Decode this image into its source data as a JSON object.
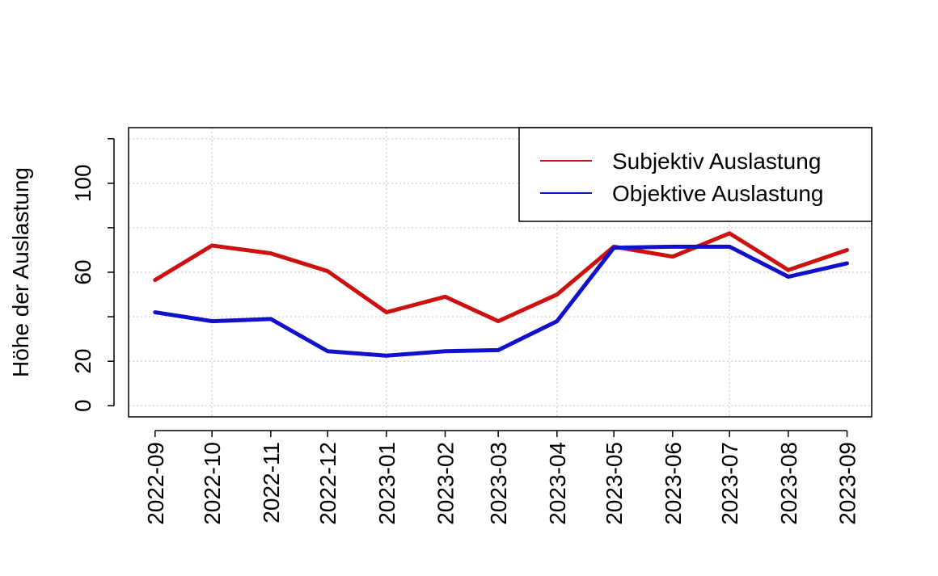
{
  "chart_data": {
    "type": "line",
    "title": "",
    "xlabel": "",
    "ylabel": "Höhe der Auslastung",
    "x": [
      "2022-09",
      "2022-10",
      "2022-11",
      "2022-12",
      "2023-01",
      "2023-02",
      "2023-03",
      "2023-04",
      "2023-05",
      "2023-06",
      "2023-07",
      "2023-08",
      "2023-09"
    ],
    "x_date_values": [
      "2022-09-01",
      "2022-10-01",
      "2022-11-01",
      "2022-12-01",
      "2023-01-01",
      "2023-02-01",
      "2023-03-01",
      "2023-04-01",
      "2023-05-01",
      "2023-06-01",
      "2023-07-01",
      "2023-08-01",
      "2023-09-01"
    ],
    "xlim": [
      "2022-08-18",
      "2023-09-14"
    ],
    "ylim": [
      -5,
      125
    ],
    "yticks": [
      0,
      20,
      40,
      60,
      80,
      100,
      120
    ],
    "ytick_labels": [
      "0",
      "20",
      "",
      "60",
      "",
      "100",
      ""
    ],
    "grid": true,
    "legend_position": "top-right",
    "series": [
      {
        "name": "Subjektiv Auslastung",
        "color": "#cc1111",
        "values": [
          56.5,
          72.0,
          68.5,
          60.5,
          42.0,
          49.0,
          38.0,
          50.0,
          71.5,
          67.0,
          77.5,
          61.0,
          70.0
        ]
      },
      {
        "name": "Objektive Auslastung",
        "color": "#1111cc",
        "values": [
          42.0,
          38.0,
          39.0,
          24.5,
          22.5,
          24.5,
          25.0,
          38.0,
          71.0,
          71.5,
          71.5,
          58.0,
          64.0
        ]
      }
    ]
  }
}
